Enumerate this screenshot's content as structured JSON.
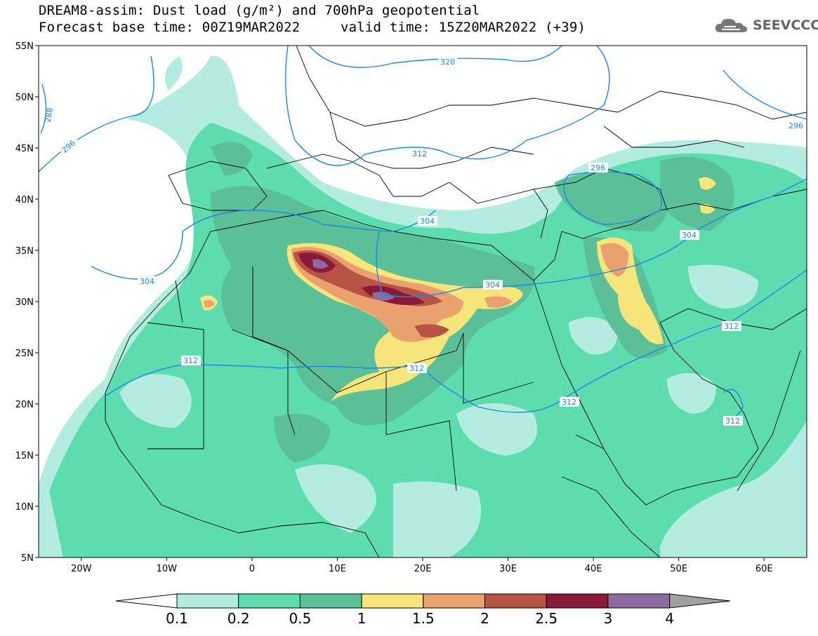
{
  "header": {
    "title_line1": "DREAM8-assim: Dust load (g/m²) and 700hPa geopotential",
    "base_time": "Forecast base time: 00Z19MAR2022",
    "valid_time": "valid time: 15Z20MAR2022 (+39)",
    "logo_text": "SEEVCCC",
    "logo_icon": "cloud-icon"
  },
  "map": {
    "lon_range": [
      -25,
      65
    ],
    "lat_range": [
      5,
      55
    ],
    "lat_labels": [
      "55N",
      "50N",
      "45N",
      "40N",
      "35N",
      "30N",
      "25N",
      "20N",
      "15N",
      "10N",
      "5N"
    ],
    "lon_labels": [
      "20W",
      "10W",
      "0",
      "10E",
      "20E",
      "30E",
      "40E",
      "50E",
      "60E"
    ],
    "contour_labels": [
      "320",
      "288",
      "296",
      "312",
      "296",
      "296",
      "304",
      "304",
      "304",
      "304",
      "312",
      "312",
      "312",
      "312",
      "312"
    ]
  },
  "colorbar": {
    "levels": [
      "0.1",
      "0.2",
      "0.5",
      "1",
      "1.5",
      "2",
      "2.5",
      "3",
      "4"
    ],
    "colors": [
      "#b4ede0",
      "#5ddcb0",
      "#5bbf97",
      "#f5e57a",
      "#eba070",
      "#b65345",
      "#8b1a3a",
      "#8c6ba1"
    ],
    "under_color": "#ffffff",
    "over_color": "#a0a0a0"
  },
  "colors": {
    "contour": "#1e88e5",
    "land_background": "#ffffff",
    "border": "#000000"
  }
}
